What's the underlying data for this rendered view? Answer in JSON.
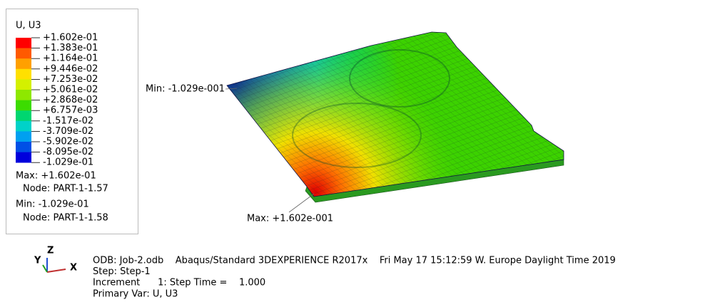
{
  "legend": {
    "title": "U, U3",
    "colors": [
      "#ff0000",
      "#ff5a00",
      "#ffa000",
      "#ffe000",
      "#d4f000",
      "#8ee800",
      "#3cdc00",
      "#00d670",
      "#00d2c8",
      "#00a0f0",
      "#0050e6",
      "#0000dc"
    ],
    "labels": [
      "+1.602e-01",
      "+1.383e-01",
      "+1.164e-01",
      "+9.446e-02",
      "+7.253e-02",
      "+5.061e-02",
      "+2.868e-02",
      "+6.757e-03",
      "-1.517e-02",
      "-3.709e-02",
      "-5.902e-02",
      "-8.095e-02",
      "-1.029e-01"
    ],
    "max": {
      "label": "Max: +1.602e-01",
      "node": "Node: PART-1-1.57"
    },
    "min": {
      "label": "Min: -1.029e-01",
      "node": "Node: PART-1-1.58"
    }
  },
  "viewport": {
    "min_annotation": "Min: -1.029e-001",
    "max_annotation": "Max: +1.602e-001"
  },
  "triad": {
    "x": "X",
    "y": "Y",
    "z": "Z"
  },
  "info": [
    "ODB: Job-2.odb    Abaqus/Standard 3DEXPERIENCE R2017x    Fri May 17 15:12:59 W. Europe Daylight Time 2019",
    "Step: Step-1",
    "Increment      1: Step Time =    1.000",
    "Primary Var: U, U3"
  ]
}
